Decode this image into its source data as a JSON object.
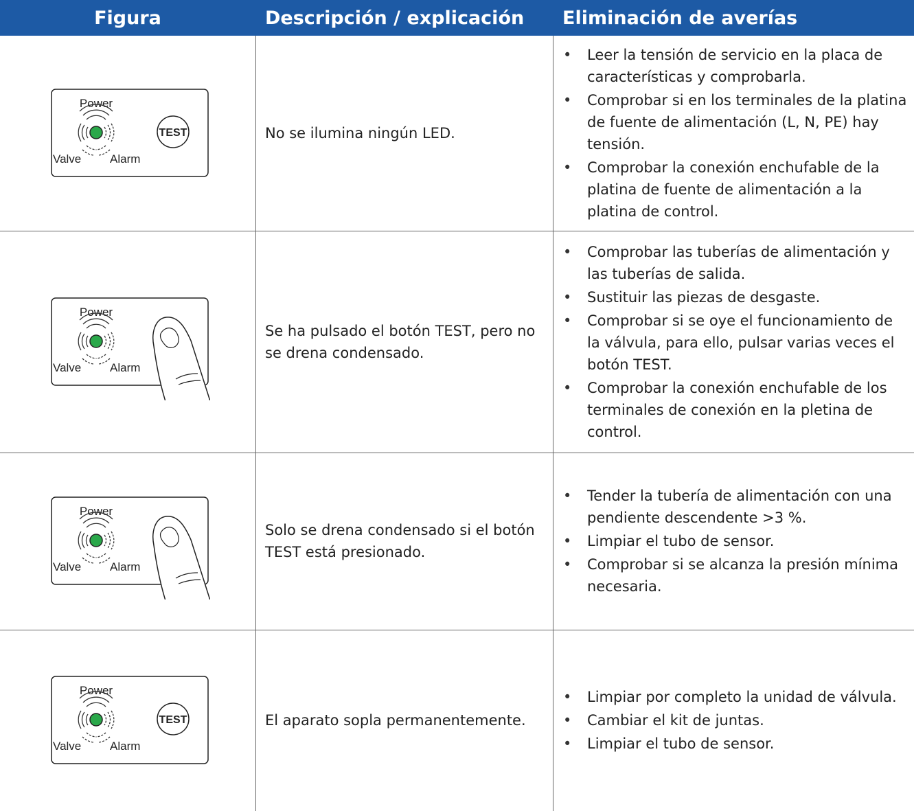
{
  "table": {
    "header": [
      "Figura",
      "Descripción / explicación",
      "Eliminación de averías"
    ],
    "rows": [
      {
        "figure": {
          "power": "Power",
          "valve": "Valve",
          "alarm": "Alarm",
          "button": "TEST"
        },
        "description": "No se ilumina ningún LED.",
        "remedies": [
          "Leer la tensión de servicio en la placa de características y comprobarla.",
          "Comprobar si en los terminales de la platina de fuente de alimentación (L, N, PE) hay tensión.",
          "Comprobar la conexión enchufable de la platina de fuente de alimentación a la platina de control."
        ]
      },
      {
        "figure": {
          "power": "Power",
          "valve": "Valve",
          "alarm": "Alarm"
        },
        "description": "Se ha pulsado el botón TEST, pero no se drena condensado.",
        "remedies": [
          "Comprobar las tuberías de alimentación y las tuberías de salida.",
          "Sustituir las piezas de desgaste.",
          "Comprobar si se oye el funcionamiento de la válvula, para ello, pulsar varias veces el botón TEST.",
          "Comprobar la conexión enchufable de los terminales de conexión en la pletina de control."
        ]
      },
      {
        "figure": {
          "power": "Power",
          "valve": "Valve",
          "alarm": "Alarm"
        },
        "description": "Solo se drena condensado si el botón TEST está presionado.",
        "remedies": [
          "Tender la tubería de alimentación con una pendiente descendente >3 %.",
          "Limpiar el tubo de sensor.",
          "Comprobar si se alcanza la presión mínima necesaria."
        ]
      },
      {
        "figure": {
          "power": "Power",
          "valve": "Valve",
          "alarm": "Alarm",
          "button": "TEST"
        },
        "description": "El aparato sopla permanentemente.",
        "remedies": [
          "Limpiar por completo la unidad de válvula.",
          "Cambiar el kit de juntas.",
          "Limpiar el tubo de sensor."
        ]
      }
    ]
  }
}
